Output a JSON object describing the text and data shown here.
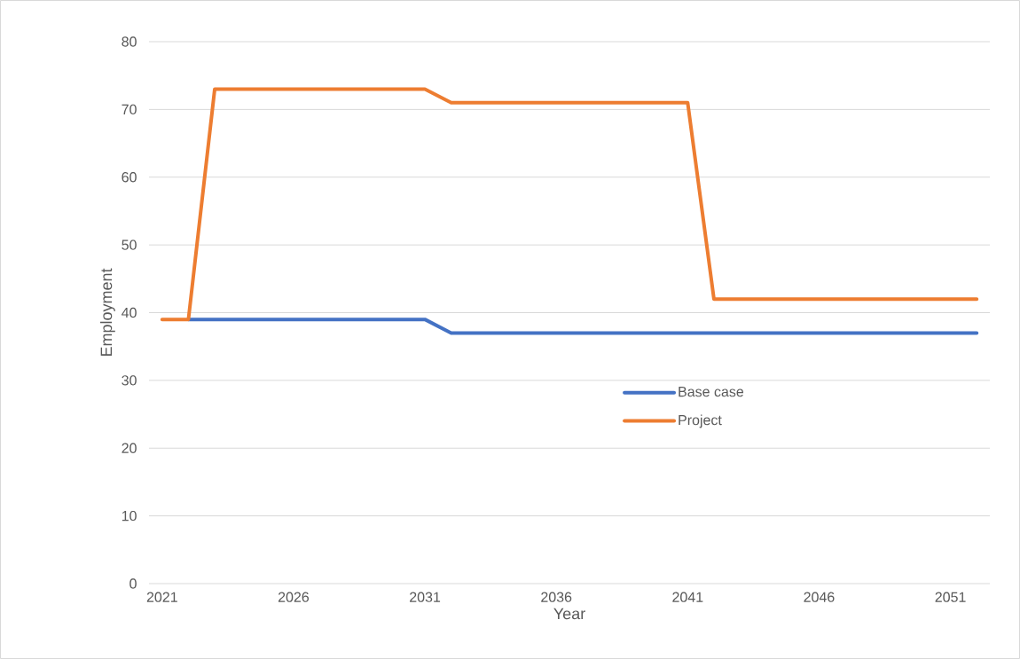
{
  "chart_data": {
    "type": "line",
    "xlabel": "Year",
    "ylabel": "Employment",
    "x": [
      2021,
      2022,
      2023,
      2024,
      2025,
      2026,
      2027,
      2028,
      2029,
      2030,
      2031,
      2032,
      2033,
      2034,
      2035,
      2036,
      2037,
      2038,
      2039,
      2040,
      2041,
      2042,
      2043,
      2044,
      2045,
      2046,
      2047,
      2048,
      2049,
      2050,
      2051,
      2052
    ],
    "series": [
      {
        "name": "Base case",
        "color": "#4472c4",
        "values": [
          null,
          39,
          39,
          39,
          39,
          39,
          39,
          39,
          39,
          39,
          39,
          37,
          37,
          37,
          37,
          37,
          37,
          37,
          37,
          37,
          37,
          37,
          37,
          37,
          37,
          37,
          37,
          37,
          37,
          37,
          37,
          37
        ]
      },
      {
        "name": "Project",
        "color": "#ed7d31",
        "values": [
          39,
          39,
          73,
          73,
          73,
          73,
          73,
          73,
          73,
          73,
          73,
          71,
          71,
          71,
          71,
          71,
          71,
          71,
          71,
          71,
          71,
          42,
          42,
          42,
          42,
          42,
          42,
          42,
          42,
          42,
          42,
          42
        ]
      }
    ],
    "xlim": [
      2020.5,
      2052.5
    ],
    "xticks": [
      2021,
      2026,
      2031,
      2036,
      2041,
      2046,
      2051
    ],
    "ylim": [
      0,
      80
    ],
    "yticks": [
      0,
      10,
      20,
      30,
      40,
      50,
      60,
      70,
      80
    ],
    "grid": "y",
    "legend": "right",
    "marker": "none",
    "line_style": "solid"
  }
}
